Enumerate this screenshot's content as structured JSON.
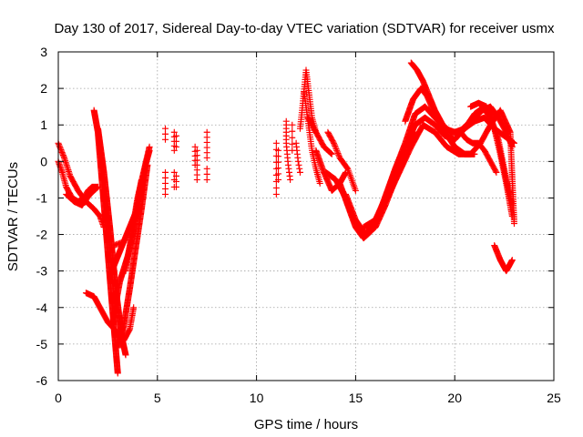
{
  "chart_data": {
    "type": "scatter",
    "title": "Day 130 of 2017, Sidereal Day-to-day VTEC variation (SDTVAR) for receiver usmx",
    "xlabel": "GPS time / hours",
    "ylabel": "SDTVAR / TECUs",
    "xlim": [
      0,
      25
    ],
    "ylim": [
      -6,
      3
    ],
    "xticks": [
      "0",
      "5",
      "10",
      "15",
      "20",
      "25"
    ],
    "yticks": [
      "-6",
      "-5",
      "-4",
      "-3",
      "-2",
      "-1",
      "0",
      "1",
      "2",
      "3"
    ],
    "grid": true,
    "marker": "plus",
    "color": "#ff0000",
    "segments": [
      {
        "x": [
          0.0,
          0.2,
          0.4,
          0.7,
          1.0,
          1.3,
          1.5,
          1.7,
          2.0
        ],
        "y": [
          0.0,
          -0.3,
          -0.7,
          -1.0,
          -1.1,
          -1.0,
          -0.8,
          -0.7,
          -0.7
        ],
        "step": 0.035
      },
      {
        "x": [
          0.0,
          0.3,
          0.6,
          1.0,
          1.4,
          1.8,
          2.1,
          2.3
        ],
        "y": [
          0.5,
          0.1,
          -0.4,
          -0.8,
          -1.1,
          -1.3,
          -1.5,
          -1.8
        ],
        "step": 0.035
      },
      {
        "x": [
          0.4,
          0.8,
          1.2,
          1.6,
          2.0
        ],
        "y": [
          -0.9,
          -1.1,
          -1.2,
          -0.9,
          -0.7
        ],
        "step": 0.04
      },
      {
        "x": [
          1.8,
          2.0,
          2.2,
          2.5,
          2.8,
          3.0
        ],
        "y": [
          1.4,
          0.8,
          -0.5,
          -2.5,
          -4.5,
          -5.8
        ],
        "step": 0.015
      },
      {
        "x": [
          2.0,
          2.3,
          2.6,
          2.9,
          3.2,
          3.4
        ],
        "y": [
          0.9,
          -0.3,
          -1.8,
          -3.5,
          -4.8,
          -5.3
        ],
        "step": 0.015
      },
      {
        "x": [
          1.4,
          1.8,
          2.1,
          2.5,
          3.0,
          3.3,
          3.6,
          3.8
        ],
        "y": [
          -3.6,
          -3.7,
          -4.0,
          -4.4,
          -4.7,
          -4.9,
          -4.6,
          -4.0
        ],
        "step": 0.03
      },
      {
        "x": [
          2.7,
          3.0,
          3.3,
          3.6,
          3.9,
          4.2
        ],
        "y": [
          -3.0,
          -2.6,
          -2.2,
          -1.8,
          -1.4,
          -0.5
        ],
        "step": 0.02
      },
      {
        "x": [
          2.8,
          3.1,
          3.5,
          3.8,
          4.1,
          4.4,
          4.6
        ],
        "y": [
          -4.2,
          -3.3,
          -2.6,
          -1.9,
          -1.0,
          -0.1,
          0.3
        ],
        "step": 0.02
      },
      {
        "x": [
          3.0,
          3.3,
          3.6,
          3.9,
          4.2,
          4.5
        ],
        "y": [
          -5.1,
          -4.5,
          -3.5,
          -2.4,
          -1.3,
          -0.1
        ],
        "step": 0.02
      },
      {
        "x": [
          3.4,
          3.7,
          4.0,
          4.3,
          4.6
        ],
        "y": [
          -3.0,
          -2.0,
          -1.0,
          -0.3,
          0.4
        ],
        "step": 0.025
      },
      {
        "x": [
          2.8,
          3.3
        ],
        "y": [
          -2.3,
          -2.2
        ],
        "step": 0.06
      },
      {
        "x": [
          5.4,
          5.4
        ],
        "y": [
          0.9,
          0.6
        ],
        "step": 0.1
      },
      {
        "x": [
          5.4,
          5.4
        ],
        "y": [
          -0.3,
          -0.9
        ],
        "step": 0.1
      },
      {
        "x": [
          5.85,
          5.85
        ],
        "y": [
          0.8,
          0.3
        ],
        "step": 0.08
      },
      {
        "x": [
          5.95,
          5.95
        ],
        "y": [
          0.7,
          0.4
        ],
        "step": 0.1
      },
      {
        "x": [
          5.85,
          5.85
        ],
        "y": [
          -0.3,
          -0.7
        ],
        "step": 0.1
      },
      {
        "x": [
          5.95,
          5.95
        ],
        "y": [
          -0.4,
          -0.7
        ],
        "step": 0.1
      },
      {
        "x": [
          6.9,
          6.9
        ],
        "y": [
          0.4,
          -0.1
        ],
        "step": 0.08
      },
      {
        "x": [
          7.0,
          7.0
        ],
        "y": [
          0.3,
          -0.5
        ],
        "step": 0.08
      },
      {
        "x": [
          7.5,
          7.5
        ],
        "y": [
          0.8,
          0.1
        ],
        "step": 0.08
      },
      {
        "x": [
          7.5,
          7.5
        ],
        "y": [
          -0.2,
          -0.5
        ],
        "step": 0.1
      },
      {
        "x": [
          11.0,
          11.0
        ],
        "y": [
          0.5,
          -0.9
        ],
        "step": 0.1
      },
      {
        "x": [
          11.1,
          11.1
        ],
        "y": [
          0.3,
          -0.5
        ],
        "step": 0.1
      },
      {
        "x": [
          11.5,
          11.5,
          11.6,
          11.7
        ],
        "y": [
          1.1,
          0.5,
          -0.1,
          -0.5
        ],
        "step": 0.06
      },
      {
        "x": [
          11.8,
          11.8
        ],
        "y": [
          1.0,
          0.3
        ],
        "step": 0.1
      },
      {
        "x": [
          12.0,
          12.1,
          12.2
        ],
        "y": [
          0.5,
          0.0,
          -0.3
        ],
        "step": 0.06
      },
      {
        "x": [
          12.2,
          12.3,
          12.5,
          12.8,
          13.0
        ],
        "y": [
          0.9,
          1.4,
          2.5,
          1.2,
          0.8
        ],
        "step": 0.04
      },
      {
        "x": [
          12.4,
          12.6,
          12.8,
          13.0,
          13.2
        ],
        "y": [
          1.9,
          1.1,
          0.3,
          -0.2,
          -0.6
        ],
        "step": 0.04
      },
      {
        "x": [
          12.6,
          13.0,
          13.4,
          13.8
        ],
        "y": [
          1.2,
          0.8,
          0.4,
          0.2
        ],
        "step": 0.04
      },
      {
        "x": [
          13.0,
          13.4,
          13.8,
          14.2,
          14.5
        ],
        "y": [
          0.3,
          -0.3,
          -0.8,
          -0.6,
          -0.3
        ],
        "step": 0.03
      },
      {
        "x": [
          13.6,
          13.9,
          14.2,
          14.6,
          15.0
        ],
        "y": [
          0.8,
          0.5,
          0.1,
          -0.2,
          -0.8
        ],
        "step": 0.04
      },
      {
        "x": [
          13.5,
          14.0,
          14.5,
          15.0,
          15.5,
          16.0,
          16.5,
          17.0,
          17.5,
          18.0,
          18.5,
          19.0,
          19.5,
          20.0,
          20.5,
          21.0,
          21.5,
          22.0,
          22.5,
          23.0
        ],
        "y": [
          -0.3,
          -0.5,
          -1.0,
          -1.7,
          -2.0,
          -1.6,
          -1.0,
          -0.2,
          0.5,
          1.3,
          1.5,
          1.2,
          0.9,
          0.8,
          0.9,
          1.1,
          1.2,
          0.9,
          0.7,
          0.5
        ],
        "step": 0.025
      },
      {
        "x": [
          14.2,
          14.6,
          15.0,
          15.4,
          15.8,
          16.2,
          16.6,
          17.0,
          17.5,
          18.0,
          18.5,
          19.0,
          19.5,
          20.0,
          20.5,
          21.0,
          21.5,
          22.0
        ],
        "y": [
          -0.6,
          -1.2,
          -1.8,
          -2.1,
          -1.9,
          -1.4,
          -0.8,
          -0.2,
          0.4,
          1.0,
          1.2,
          1.0,
          0.7,
          0.6,
          0.9,
          1.3,
          1.5,
          1.3
        ],
        "step": 0.025
      },
      {
        "x": [
          14.5,
          15.0,
          15.5,
          16.0,
          16.5,
          17.0,
          17.5,
          18.0
        ],
        "y": [
          -0.9,
          -1.6,
          -2.0,
          -1.8,
          -1.2,
          -0.5,
          0.1,
          0.8
        ],
        "step": 0.03
      },
      {
        "x": [
          15.4,
          16.0,
          16.6,
          17.2,
          17.8,
          18.4,
          19.0,
          19.6,
          20.2,
          20.8,
          21.3,
          21.8,
          22.3,
          22.8,
          23.0
        ],
        "y": [
          -1.8,
          -1.6,
          -1.0,
          -0.3,
          0.4,
          1.0,
          0.8,
          0.4,
          0.2,
          0.2,
          0.5,
          1.0,
          1.4,
          0.8,
          -1.7
        ],
        "step": 0.03
      },
      {
        "x": [
          17.8,
          18.1,
          18.4,
          18.7,
          19.0,
          19.4,
          19.8,
          20.2,
          20.6,
          21.0
        ],
        "y": [
          2.7,
          2.5,
          2.2,
          1.8,
          1.4,
          1.0,
          0.8,
          0.8,
          1.0,
          1.2
        ],
        "step": 0.025
      },
      {
        "x": [
          17.5,
          17.9,
          18.3,
          18.6,
          19.0,
          19.5,
          20.0,
          20.5,
          21.0
        ],
        "y": [
          1.1,
          1.7,
          2.0,
          1.8,
          1.3,
          0.8,
          0.4,
          0.2,
          0.2
        ],
        "step": 0.025
      },
      {
        "x": [
          20.8,
          21.2,
          21.6,
          22.0,
          22.3,
          22.6,
          22.9
        ],
        "y": [
          1.5,
          1.6,
          1.5,
          0.9,
          0.2,
          -0.6,
          -1.5
        ],
        "step": 0.03
      },
      {
        "x": [
          21.0,
          21.4,
          21.8,
          22.2,
          22.6,
          22.9
        ],
        "y": [
          1.2,
          1.4,
          1.5,
          1.2,
          0.8,
          0.4
        ],
        "step": 0.03
      },
      {
        "x": [
          21.4,
          21.8,
          22.2,
          22.6,
          22.9
        ],
        "y": [
          1.5,
          1.2,
          0.6,
          -0.5,
          -1.2
        ],
        "step": 0.03
      },
      {
        "x": [
          20.3,
          20.6,
          20.9,
          21.2,
          21.5,
          21.8,
          22.1
        ],
        "y": [
          0.8,
          0.6,
          0.5,
          0.5,
          0.3,
          0.0,
          -0.3
        ],
        "step": 0.04
      },
      {
        "x": [
          22.0,
          22.3,
          22.6,
          22.9
        ],
        "y": [
          -2.3,
          -2.7,
          -3.0,
          -2.7
        ],
        "step": 0.025
      }
    ]
  }
}
